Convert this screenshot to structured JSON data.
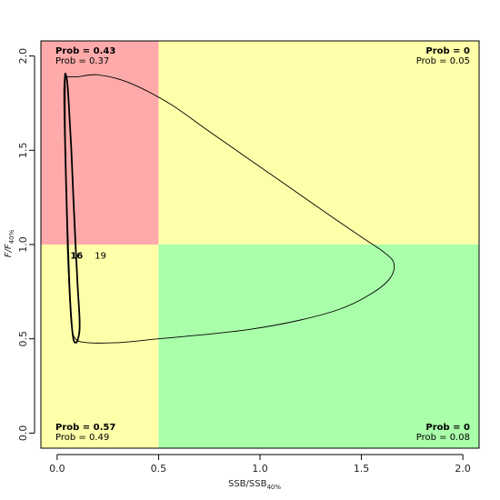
{
  "chart_data": {
    "type": "phase-plot",
    "xlabel": {
      "main": "SSB/SSB",
      "sub": "40%"
    },
    "ylabel": {
      "main": "F/F",
      "sub": "40%"
    },
    "xlim": [
      -0.08,
      2.08
    ],
    "ylim": [
      -0.08,
      2.08
    ],
    "x_ticks": [
      0.0,
      0.5,
      1.0,
      1.5,
      2.0
    ],
    "y_ticks": [
      0.0,
      0.5,
      1.0,
      1.5,
      2.0
    ],
    "x_tick_labels": [
      "0.0",
      "0.5",
      "1.0",
      "1.5",
      "2.0"
    ],
    "y_tick_labels": [
      "0.0",
      "0.5",
      "1.0",
      "1.5",
      "2.0"
    ],
    "thresholds": {
      "x": 0.5,
      "y": 1.0
    },
    "zone_colors": {
      "top_left": "#ffaaaa",
      "top_right": "#ffffaa",
      "bottom_left": "#ffffaa",
      "bottom_right": "#aaffaa"
    },
    "quadrant_probs": {
      "top_left": {
        "bold": "Prob = 0.43",
        "normal": "Prob = 0.37"
      },
      "top_right": {
        "bold": "Prob = 0",
        "normal": "Prob = 0.05"
      },
      "bottom_left": {
        "bold": "Prob = 0.57",
        "normal": "Prob = 0.49"
      },
      "bottom_right": {
        "bold": "Prob = 0",
        "normal": "Prob = 0.08"
      }
    },
    "contours": [
      {
        "label": "16",
        "label_weight": "bold",
        "stroke_width": 1.8,
        "points": [
          [
            0.04,
            1.91
          ],
          [
            0.05,
            1.86
          ],
          [
            0.06,
            1.7
          ],
          [
            0.07,
            1.5
          ],
          [
            0.08,
            1.25
          ],
          [
            0.09,
            1.02
          ],
          [
            0.1,
            0.8
          ],
          [
            0.11,
            0.62
          ],
          [
            0.11,
            0.54
          ],
          [
            0.1,
            0.49
          ],
          [
            0.09,
            0.48
          ],
          [
            0.08,
            0.5
          ],
          [
            0.07,
            0.6
          ],
          [
            0.06,
            0.8
          ],
          [
            0.05,
            1.1
          ],
          [
            0.04,
            1.5
          ],
          [
            0.035,
            1.8
          ],
          [
            0.04,
            1.91
          ]
        ]
      },
      {
        "label": "19",
        "label_weight": "normal",
        "stroke_width": 0.9,
        "points": [
          [
            0.04,
            1.89
          ],
          [
            0.1,
            1.89
          ],
          [
            0.2,
            1.9
          ],
          [
            0.35,
            1.86
          ],
          [
            0.55,
            1.75
          ],
          [
            0.75,
            1.6
          ],
          [
            0.95,
            1.45
          ],
          [
            1.15,
            1.3
          ],
          [
            1.35,
            1.15
          ],
          [
            1.5,
            1.04
          ],
          [
            1.61,
            0.96
          ],
          [
            1.66,
            0.9
          ],
          [
            1.64,
            0.82
          ],
          [
            1.55,
            0.74
          ],
          [
            1.4,
            0.66
          ],
          [
            1.2,
            0.6
          ],
          [
            0.95,
            0.55
          ],
          [
            0.7,
            0.52
          ],
          [
            0.5,
            0.5
          ],
          [
            0.3,
            0.48
          ],
          [
            0.15,
            0.48
          ],
          [
            0.09,
            0.5
          ],
          [
            0.07,
            0.58
          ],
          [
            0.06,
            0.75
          ],
          [
            0.05,
            1.0
          ],
          [
            0.045,
            1.3
          ],
          [
            0.04,
            1.6
          ],
          [
            0.04,
            1.89
          ]
        ]
      }
    ],
    "point_labels": [
      {
        "text": "16",
        "x": 0.065,
        "y": 0.94,
        "weight": "bold"
      },
      {
        "text": "19",
        "x": 0.185,
        "y": 0.94,
        "weight": "normal"
      }
    ]
  }
}
